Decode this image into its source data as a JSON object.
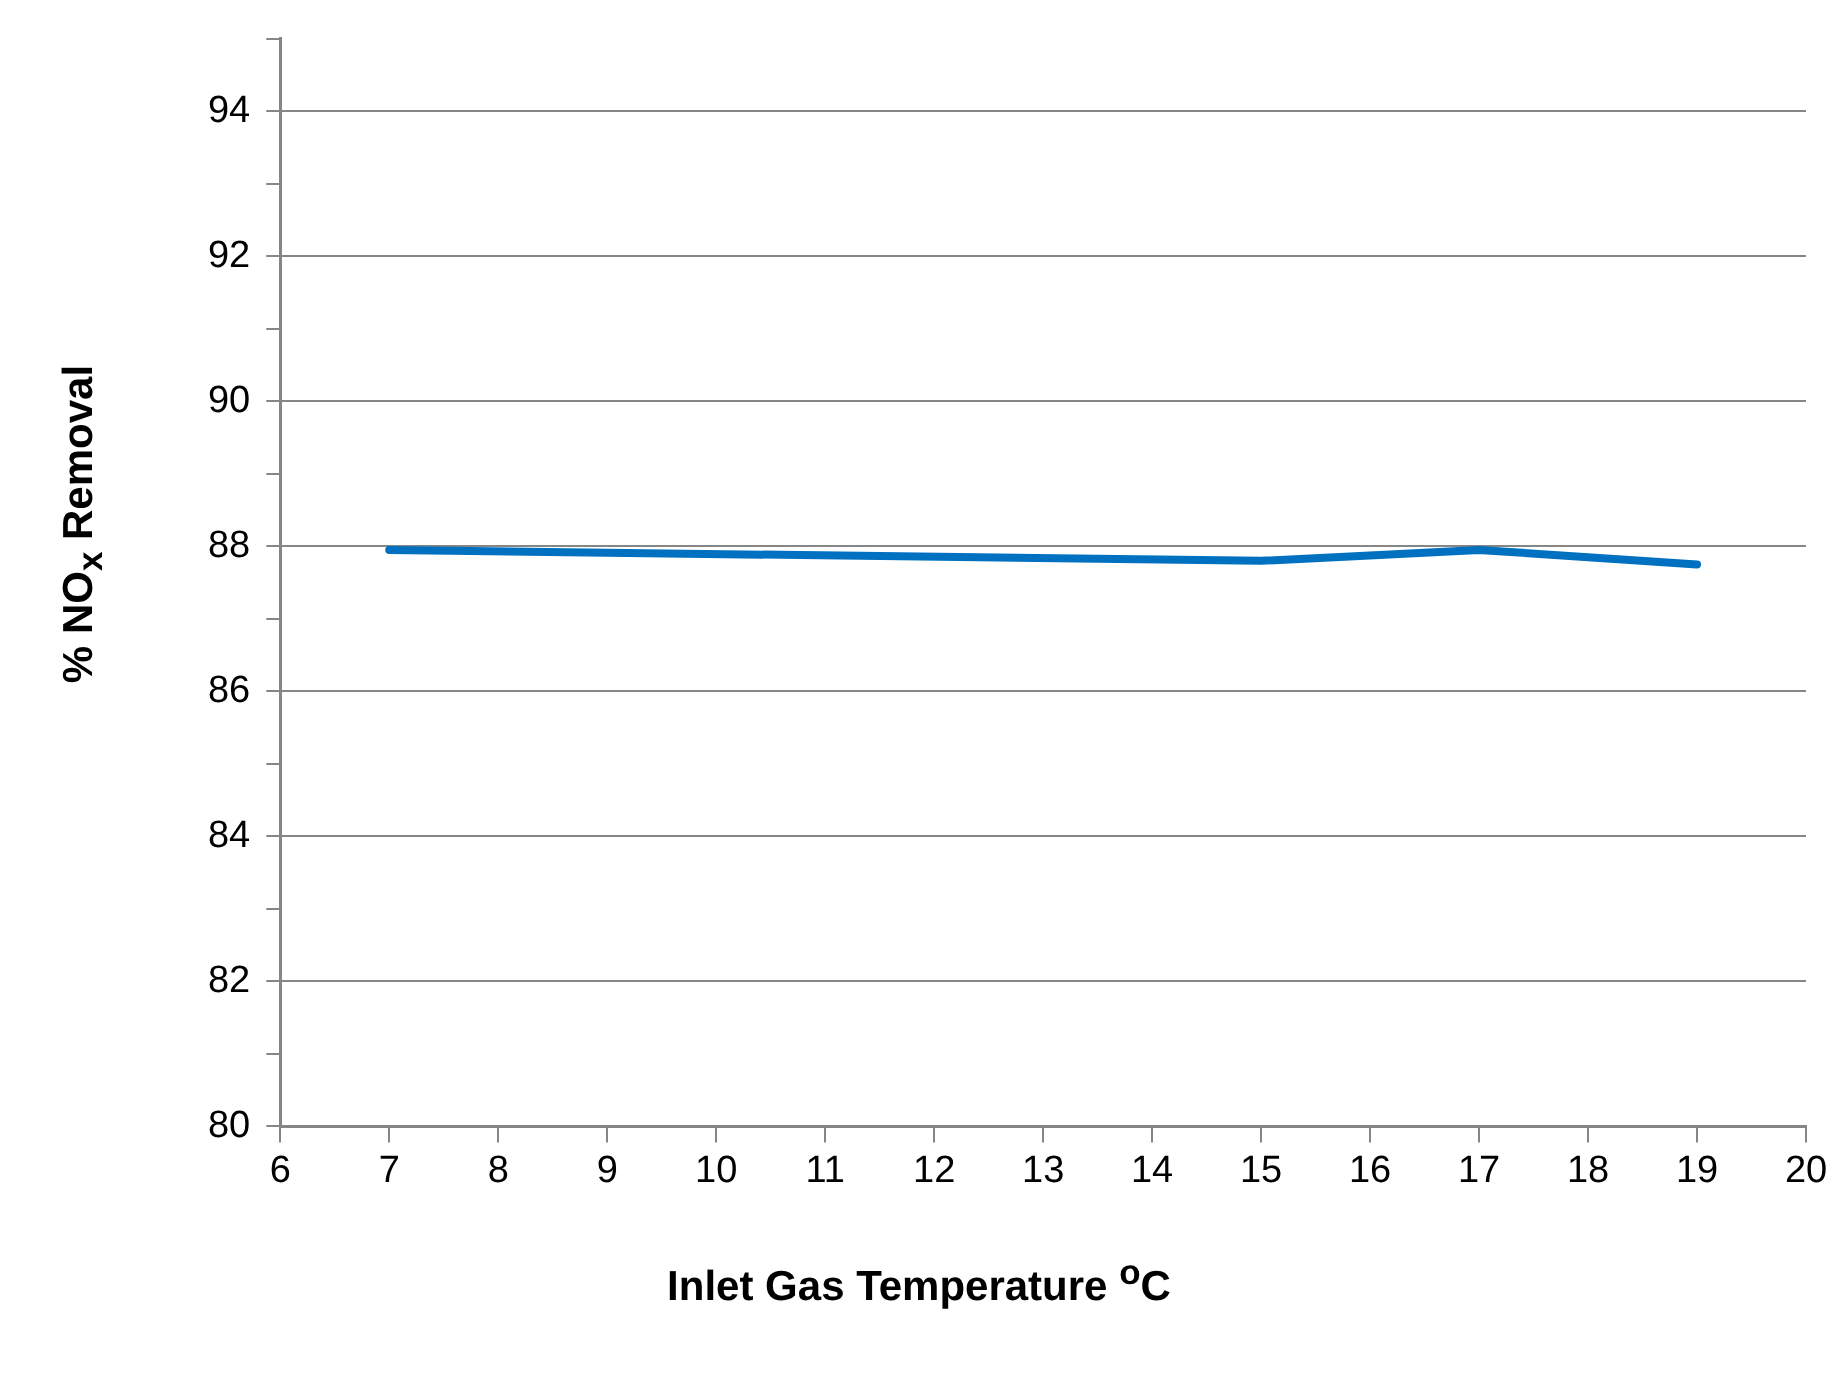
{
  "chart_data": {
    "type": "line",
    "xlabel": "Inlet Gas Temperature $^{o}$C",
    "ylabel": "% NO$_{x}$ Removal",
    "x": [
      7,
      15,
      17,
      19
    ],
    "series": [
      {
        "color": "#0070c0",
        "values": [
          87.95,
          87.8,
          87.95,
          87.75
        ]
      }
    ],
    "xlim": [
      6,
      20
    ],
    "xticks": [
      6,
      7,
      8,
      9,
      10,
      11,
      12,
      13,
      14,
      15,
      16,
      17,
      18,
      19,
      20
    ],
    "ylim": [
      80,
      95
    ],
    "yticks": [
      80,
      {
        "value": 81,
        "label": null
      },
      82,
      {
        "value": 83,
        "label": null
      },
      84,
      {
        "value": 85,
        "label": null
      },
      86,
      {
        "value": 87,
        "label": null
      },
      88,
      {
        "value": 89,
        "label": null
      },
      90,
      {
        "value": 91,
        "label": null
      },
      92,
      {
        "value": 93,
        "label": null
      },
      94,
      {
        "value": 95,
        "label": null
      }
    ],
    "grid": "y"
  }
}
